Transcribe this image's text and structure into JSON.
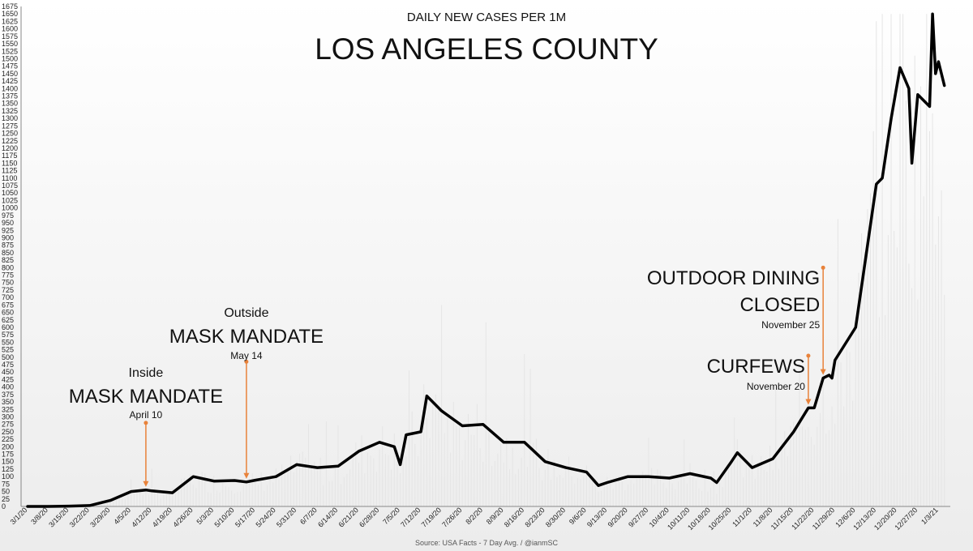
{
  "chart_data": {
    "type": "line",
    "subtitle": "DAILY NEW CASES PER 1M",
    "title": "LOS ANGELES COUNTY",
    "source": "Source: USA Facts - 7 Day Avg. / @ianmSC",
    "ylim": [
      0,
      1675
    ],
    "ytick_step": 25,
    "x_tick_labels": [
      "3/1/20",
      "3/8/20",
      "3/15/20",
      "3/22/20",
      "3/29/20",
      "4/5/20",
      "4/12/20",
      "4/19/20",
      "4/26/20",
      "5/3/20",
      "5/10/20",
      "5/17/20",
      "5/24/20",
      "5/31/20",
      "6/7/20",
      "6/14/20",
      "6/21/20",
      "6/28/20",
      "7/5/20",
      "7/12/20",
      "7/19/20",
      "7/26/20",
      "8/2/20",
      "8/9/20",
      "8/16/20",
      "8/23/20",
      "8/30/20",
      "9/6/20",
      "9/13/20",
      "9/20/20",
      "9/27/20",
      "10/4/20",
      "10/11/20",
      "10/18/20",
      "10/25/20",
      "11/1/20",
      "11/8/20",
      "11/15/20",
      "11/22/20",
      "11/29/20",
      "12/6/20",
      "12/13/20",
      "12/20/20",
      "12/27/20",
      "1/3/21"
    ],
    "grid": false,
    "legend": "none",
    "series": [
      {
        "color": "#000000",
        "x": [
          "3/1/20",
          "3/8/20",
          "3/15/20",
          "3/22/20",
          "3/29/20",
          "4/5/20",
          "4/10/20",
          "4/12/20",
          "4/19/20",
          "4/26/20",
          "5/3/20",
          "5/10/20",
          "5/14/20",
          "5/17/20",
          "5/24/20",
          "5/31/20",
          "6/7/20",
          "6/14/20",
          "6/21/20",
          "6/28/20",
          "7/3/20",
          "7/5/20",
          "7/7/20",
          "7/12/20",
          "7/14/20",
          "7/19/20",
          "7/26/20",
          "8/2/20",
          "8/9/20",
          "8/16/20",
          "8/23/20",
          "8/30/20",
          "9/6/20",
          "9/10/20",
          "9/13/20",
          "9/20/20",
          "9/27/20",
          "10/4/20",
          "10/11/20",
          "10/18/20",
          "10/20/20",
          "10/25/20",
          "10/27/20",
          "11/1/20",
          "11/8/20",
          "11/15/20",
          "11/20/20",
          "11/22/20",
          "11/25/20",
          "11/27/20",
          "11/28/20",
          "11/29/20",
          "12/6/20",
          "12/13/20",
          "12/15/20",
          "12/18/20",
          "12/21/20",
          "12/24/20",
          "12/25/20",
          "12/27/20",
          "12/30/20",
          "12/31/20",
          "1/1/21",
          "1/2/21",
          "1/3/21",
          "1/5/21"
        ],
        "y": [
          0,
          0,
          1,
          3,
          20,
          50,
          55,
          52,
          46,
          100,
          85,
          87,
          82,
          88,
          100,
          140,
          130,
          135,
          185,
          215,
          200,
          140,
          240,
          250,
          370,
          320,
          270,
          275,
          215,
          215,
          150,
          130,
          115,
          70,
          80,
          100,
          100,
          95,
          110,
          95,
          80,
          150,
          180,
          130,
          160,
          250,
          330,
          330,
          430,
          440,
          430,
          490,
          600,
          1080,
          1100,
          1300,
          1470,
          1400,
          1150,
          1380,
          1350,
          1340,
          1650,
          1450,
          1490,
          1410
        ]
      }
    ],
    "background_bars": {
      "color": "#e5e5e5",
      "peak": 1650
    },
    "annotations": [
      {
        "id": "inside-mask",
        "small": "Inside",
        "big": "MASK MANDATE",
        "date": "April 10",
        "x": "4/10/20",
        "arrow_from": 280
      },
      {
        "id": "outside-mask",
        "small": "Outside",
        "big": "MASK MANDATE",
        "date": "May 14",
        "x": "5/14/20",
        "arrow_from": 485
      },
      {
        "id": "curfews",
        "big": "CURFEWS",
        "date": "November 20",
        "x": "11/20/20",
        "arrow_from": 505
      },
      {
        "id": "outdoor-dining",
        "big_line1": "OUTDOOR DINING",
        "big_line2": "CLOSED",
        "date": "November 25",
        "x": "11/25/20",
        "arrow_from": 800
      }
    ],
    "annotation_color": "#e8823a"
  }
}
